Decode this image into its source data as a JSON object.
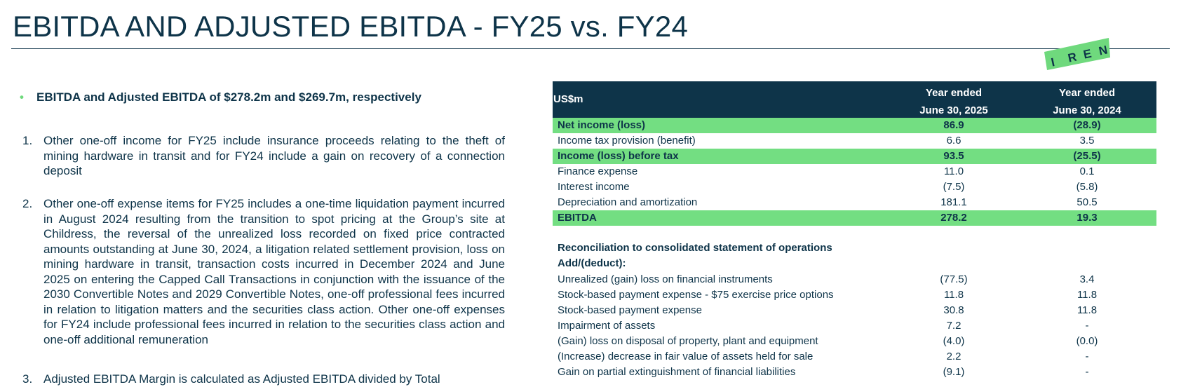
{
  "title": "EBITDA AND ADJUSTED EBITDA - FY25 vs. FY24",
  "logo_letters": [
    "I",
    "R",
    "E",
    "N"
  ],
  "colors": {
    "navy": "#0e3449",
    "green": "#73de82",
    "logo_green": "#6fd97d"
  },
  "bullet": "EBITDA and Adjusted EBITDA of $278.2m and $269.7m, respectively",
  "notes": [
    {
      "num": "1.",
      "text": "Other one-off income for FY25 include insurance proceeds relating to the theft of mining hardware in transit and for FY24 include a gain on recovery of a connection deposit"
    },
    {
      "num": "2.",
      "text": "Other one-off expense items for FY25 includes a one-time liquidation payment incurred in August 2024 resulting from the transition to spot pricing at the Group’s site at Childress, the reversal of the unrealized loss recorded on fixed price contracted amounts outstanding at June 30, 2024, a litigation related settlement provision,  loss on mining hardware in transit, transaction costs incurred in December 2024 and June 2025 on entering the Capped Call Transactions in conjunction with the issuance of  the 2030 Convertible Notes and 2029 Convertible Notes, one-off professional fees incurred in relation to litigation matters and the securities class action. Other one-off expenses for FY24 include professional fees incurred in relation to the securities class action and one-off additional remuneration"
    },
    {
      "num": "3.",
      "text": "Adjusted EBITDA Margin is calculated as Adjusted EBITDA divided by Total"
    }
  ],
  "table": {
    "unit": "US$m",
    "col1": {
      "line1": "Year ended",
      "line2": "June 30, 2025"
    },
    "col2": {
      "line1": "Year ended",
      "line2": "June 30, 2024"
    },
    "rows": [
      {
        "label": "Net income (loss)",
        "fy25": "86.9",
        "fy24": "(28.9)",
        "highlight": true
      },
      {
        "label": "Income tax provision (benefit)",
        "fy25": "6.6",
        "fy24": "3.5",
        "highlight": false
      },
      {
        "label": "Income (loss) before tax",
        "fy25": "93.5",
        "fy24": "(25.5)",
        "highlight": true
      },
      {
        "label": "Finance expense",
        "fy25": "11.0",
        "fy24": "0.1",
        "highlight": false
      },
      {
        "label": "Interest income",
        "fy25": "(7.5)",
        "fy24": "(5.8)",
        "highlight": false
      },
      {
        "label": "Depreciation and amortization",
        "fy25": "181.1",
        "fy24": "50.5",
        "highlight": false
      },
      {
        "label": "EBITDA",
        "fy25": "278.2",
        "fy24": "19.3",
        "highlight": true
      }
    ],
    "reconciliation_title": "Reconciliation to consolidated statement of operations",
    "add_deduct": "Add/(deduct):",
    "recon_rows": [
      {
        "label": "Unrealized (gain) loss on financial instruments",
        "fy25": "(77.5)",
        "fy24": "3.4"
      },
      {
        "label": "Stock-based payment expense - $75 exercise price options",
        "fy25": "11.8",
        "fy24": "11.8"
      },
      {
        "label": "Stock-based payment expense",
        "fy25": "30.8",
        "fy24": "11.8"
      },
      {
        "label": "Impairment of assets",
        "fy25": "7.2",
        "fy24": "-"
      },
      {
        "label": "(Gain) loss on disposal of property, plant and equipment",
        "fy25": "(4.0)",
        "fy24": "(0.0)"
      },
      {
        "label": "(Increase) decrease in fair value of assets held for sale",
        "fy25": "2.2",
        "fy24": "-"
      },
      {
        "label": "Gain on partial extinguishment of financial liabilities",
        "fy25": "(9.1)",
        "fy24": "-"
      }
    ]
  }
}
